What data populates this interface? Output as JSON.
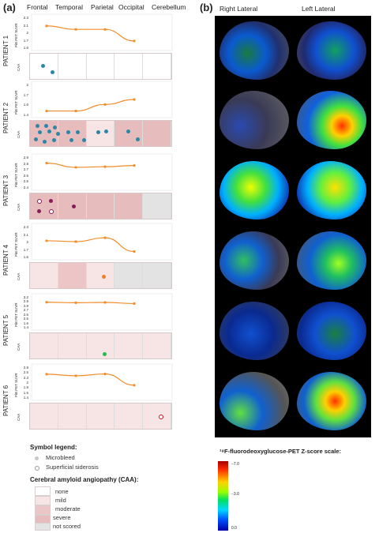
{
  "panel_a": {
    "label": "(a)",
    "regions": [
      "Frontal",
      "Temporal",
      "Parietal",
      "Occipital",
      "Cerebellum"
    ],
    "y_axis_label": "PiB PET SUVR",
    "caa_label": "CAA",
    "patients": [
      {
        "label": "PATIENT 1",
        "ticks": [
          "2.3",
          "2.1",
          "2",
          "1.7",
          "1.6"
        ]
      },
      {
        "label": "PATIENT 2",
        "ticks": [
          "2",
          "1.7",
          "1.6",
          "1.4"
        ]
      },
      {
        "label": "PATIENT 3",
        "ticks": [
          "2.9",
          "2.8",
          "2.7",
          "2.6",
          "2.5",
          "2.4"
        ]
      },
      {
        "label": "PATIENT 4",
        "ticks": [
          "2.3",
          "2.1",
          "2",
          "1.7",
          "1.6"
        ]
      },
      {
        "label": "PATIENT 5",
        "ticks": [
          "3.2",
          "2.9",
          "2.8",
          "2.7",
          "2.6",
          "2.5",
          "1.6",
          "1.4"
        ]
      },
      {
        "label": "PATIENT 6",
        "ticks": [
          "2.9",
          "2.5",
          "2.3",
          "2",
          "1.8",
          "1.6",
          "1.4"
        ]
      }
    ],
    "chart_data": {
      "type": "line",
      "categories": [
        "Frontal",
        "Temporal",
        "Parietal",
        "Occipital"
      ],
      "ylabel": "PiB PET SUVR",
      "series": [
        {
          "values": [
            2.1,
            2.02,
            2.02,
            1.75
          ],
          "ylim": [
            1.6,
            2.3
          ]
        },
        {
          "values": [
            1.47,
            1.47,
            1.6,
            1.7
          ],
          "ylim": [
            1.4,
            2.0
          ]
        },
        {
          "values": [
            2.8,
            2.73,
            2.74,
            2.76
          ],
          "ylim": [
            2.4,
            2.9
          ]
        },
        {
          "values": [
            1.97,
            1.95,
            2.04,
            1.72
          ],
          "ylim": [
            1.6,
            2.3
          ]
        },
        {
          "values": [
            2.88,
            2.85,
            2.87,
            2.8
          ],
          "ylim": [
            1.4,
            3.2
          ]
        },
        {
          "values": [
            2.55,
            2.47,
            2.56,
            2.0
          ],
          "ylim": [
            1.4,
            2.9
          ]
        }
      ]
    },
    "caa_grades": [
      [
        "none",
        "none",
        "none",
        "none",
        "none"
      ],
      [
        "severe",
        "severe",
        "mild",
        "severe",
        "severe"
      ],
      [
        "severe",
        "severe",
        "severe",
        "severe",
        "not_scored"
      ],
      [
        "mild",
        "moderate",
        "mild",
        "not_scored",
        "not_scored"
      ],
      [
        "mild",
        "mild",
        "mild",
        "mild",
        "mild"
      ],
      [
        "mild",
        "mild",
        "mild",
        "mild",
        "mild"
      ]
    ],
    "colors": {
      "line": "#f28c28",
      "microbleed_blue": "#2e86a6",
      "microbleed_purple": "#8b1a5a",
      "orange_dot": "#f08020",
      "green_dot": "#2db84a",
      "red_ring": "#d0102a",
      "none": "#ffffff",
      "mild": "#f7e4e4",
      "moderate": "#ecc6c6",
      "severe": "#e6bcbc",
      "not_scored": "#e3e3e3"
    }
  },
  "legend": {
    "symbol_title": "Symbol legend:",
    "microbleed": "Microbleed",
    "siderosis": "Superficial siderosis",
    "caa_title": "Cerebral amyloid angiopathy (CAA):",
    "grades": [
      "none",
      "mild",
      "moderate",
      "severe",
      "not scored"
    ]
  },
  "panel_b": {
    "label": "(b)",
    "right_lateral": "Right Lateral",
    "left_lateral": "Left Lateral",
    "scale_title": "¹⁸F-fluorodeoxyglucose-PET Z-score scale:",
    "scale_ticks": [
      "−7.0",
      "−3.0",
      "0.0"
    ]
  }
}
